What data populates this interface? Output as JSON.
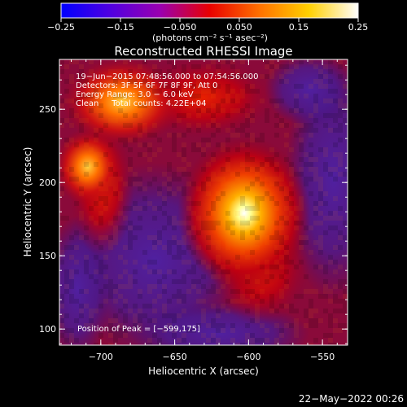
{
  "colorbar": {
    "ticks": [
      "−0.25",
      "−0.15",
      "−0.050",
      "0.050",
      "0.15",
      "0.25"
    ],
    "unit_label": "(photons cm⁻² s⁻¹ asec⁻²)",
    "range": [
      -0.25,
      0.25
    ],
    "colormap": [
      "#0000ff",
      "#5000e0",
      "#9a00b0",
      "#e80000",
      "#ff7000",
      "#ffd000",
      "#ffffff"
    ]
  },
  "title": "Reconstructed RHESSI Image",
  "info": {
    "line1": "19−Jun−2015 07:48:56.000 to 07:54:56.000",
    "line2": "Detectors: 3F 5F 6F 7F 8F 9F, Att 0",
    "line3": "Energy Range: 3.0 − 6.0 keV",
    "line4": "Clean     Total counts: 4.22E+04"
  },
  "peak_label": "Position of Peak = [−599,175]",
  "axes": {
    "xlabel": "Heliocentric X (arcsec)",
    "ylabel": "Heliocentric Y (arcsec)",
    "xticks": [
      "−700",
      "−650",
      "−600",
      "−550"
    ],
    "yticks": [
      "250",
      "200",
      "150",
      "100"
    ]
  },
  "footer_date": "22−May−2022 00:26",
  "chart_data": {
    "type": "heatmap",
    "title": "Reconstructed RHESSI Image",
    "xlabel": "Heliocentric X (arcsec)",
    "ylabel": "Heliocentric Y (arcsec)",
    "xlim": [
      -728,
      -533
    ],
    "ylim": [
      89,
      284
    ],
    "color_range": [
      -0.25,
      0.25
    ],
    "peak": {
      "x": -599,
      "y": 175
    },
    "sources": [
      {
        "x": -599,
        "y": 175,
        "relative_intensity": 1.0
      },
      {
        "x": -712,
        "y": 215,
        "relative_intensity": 0.75
      },
      {
        "x": -690,
        "y": 258,
        "relative_intensity": 0.5
      }
    ]
  }
}
